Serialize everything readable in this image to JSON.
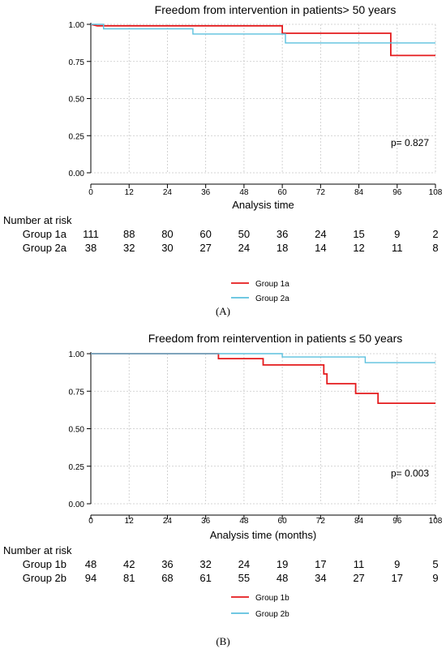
{
  "chart_data": [
    {
      "type": "line",
      "panel_label": "(A)",
      "title": "Freedom from intervention in patients> 50 years",
      "xlabel": "Analysis time",
      "ylabel": "",
      "xlim": [
        0,
        108
      ],
      "ylim": [
        0,
        1
      ],
      "x_ticks": [
        "0",
        "12",
        "24",
        "36",
        "48",
        "60",
        "72",
        "84",
        "96",
        "108"
      ],
      "y_ticks": [
        "0.00",
        "0.25",
        "0.50",
        "0.75",
        "1.00"
      ],
      "grid": true,
      "annotation": "p= 0.827",
      "series": [
        {
          "name": "Group 1a",
          "color": "#e41a1c",
          "points": [
            [
              0,
              1.0
            ],
            [
              2,
              0.99
            ],
            [
              60,
              0.99
            ],
            [
              60,
              0.94
            ],
            [
              94,
              0.94
            ],
            [
              94,
              0.79
            ],
            [
              108,
              0.79
            ]
          ]
        },
        {
          "name": "Group 2a",
          "color": "#5bc0de",
          "points": [
            [
              0,
              1.0
            ],
            [
              4,
              1.0
            ],
            [
              4,
              0.97
            ],
            [
              32,
              0.97
            ],
            [
              32,
              0.935
            ],
            [
              61,
              0.935
            ],
            [
              61,
              0.875
            ],
            [
              108,
              0.875
            ]
          ]
        }
      ],
      "risk_table": {
        "header": "Number at risk",
        "rows": [
          {
            "label": "Group 1a",
            "values": [
              "111",
              "88",
              "80",
              "60",
              "50",
              "36",
              "24",
              "15",
              "9",
              "2"
            ]
          },
          {
            "label": "Group 2a",
            "values": [
              "38",
              "32",
              "30",
              "27",
              "24",
              "18",
              "14",
              "12",
              "11",
              "8"
            ]
          }
        ]
      }
    },
    {
      "type": "line",
      "panel_label": "(B)",
      "title": "Freedom from reintervention in patients ≤ 50 years",
      "xlabel": "Analysis time (months)",
      "ylabel": "",
      "xlim": [
        0,
        108
      ],
      "ylim": [
        0,
        1
      ],
      "x_ticks": [
        "0",
        "12",
        "24",
        "36",
        "48",
        "60",
        "72",
        "84",
        "96",
        "108"
      ],
      "y_ticks": [
        "0.00",
        "0.25",
        "0.50",
        "0.75",
        "1.00"
      ],
      "grid": true,
      "annotation": "p= 0.003",
      "series": [
        {
          "name": "Group 1b",
          "color": "#e41a1c",
          "points": [
            [
              0,
              1.0
            ],
            [
              40,
              1.0
            ],
            [
              40,
              0.967
            ],
            [
              54,
              0.967
            ],
            [
              54,
              0.925
            ],
            [
              73,
              0.925
            ],
            [
              73,
              0.865
            ],
            [
              74,
              0.865
            ],
            [
              74,
              0.8
            ],
            [
              83,
              0.8
            ],
            [
              83,
              0.735
            ],
            [
              90,
              0.735
            ],
            [
              90,
              0.67
            ],
            [
              108,
              0.67
            ]
          ]
        },
        {
          "name": "Group 2b",
          "color": "#5bc0de",
          "points": [
            [
              0,
              1.0
            ],
            [
              60,
              1.0
            ],
            [
              60,
              0.978
            ],
            [
              86,
              0.978
            ],
            [
              86,
              0.94
            ],
            [
              108,
              0.94
            ]
          ]
        }
      ],
      "risk_table": {
        "header": "Number at risk",
        "rows": [
          {
            "label": "Group 1b",
            "values": [
              "48",
              "42",
              "36",
              "32",
              "24",
              "19",
              "17",
              "11",
              "9",
              "5"
            ]
          },
          {
            "label": "Group 2b",
            "values": [
              "94",
              "81",
              "68",
              "61",
              "55",
              "48",
              "34",
              "27",
              "17",
              "9"
            ]
          }
        ]
      }
    }
  ]
}
